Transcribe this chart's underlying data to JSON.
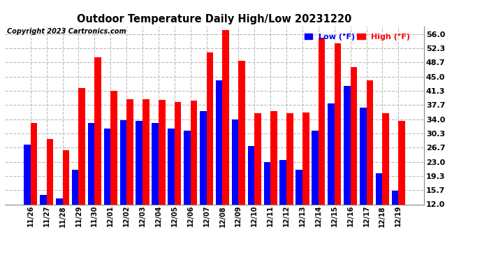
{
  "title": "Outdoor Temperature Daily High/Low 20231220",
  "copyright": "Copyright 2023 Cartronics.com",
  "legend_low": "Low (°F)",
  "legend_high": "High (°F)",
  "low_color": "#0000ff",
  "high_color": "#ff0000",
  "background_color": "#ffffff",
  "ylim": [
    12.0,
    58.0
  ],
  "yticks": [
    12.0,
    15.7,
    19.3,
    23.0,
    26.7,
    30.3,
    34.0,
    37.7,
    41.3,
    45.0,
    48.7,
    52.3,
    56.0
  ],
  "dates": [
    "11/26",
    "11/27",
    "11/28",
    "11/29",
    "11/30",
    "12/01",
    "12/02",
    "12/03",
    "12/04",
    "12/05",
    "12/06",
    "12/07",
    "12/08",
    "12/09",
    "12/10",
    "12/11",
    "12/12",
    "12/13",
    "12/14",
    "12/15",
    "12/16",
    "12/17",
    "12/18",
    "12/19"
  ],
  "highs": [
    33.0,
    28.8,
    26.0,
    42.0,
    50.0,
    41.3,
    39.2,
    39.2,
    39.0,
    38.5,
    38.8,
    51.2,
    57.0,
    49.0,
    35.5,
    36.0,
    35.5,
    35.8,
    55.0,
    53.5,
    47.5,
    44.0,
    35.5,
    33.5
  ],
  "lows": [
    27.5,
    14.5,
    13.5,
    21.0,
    33.0,
    31.5,
    33.8,
    33.5,
    33.0,
    31.5,
    31.0,
    36.0,
    44.0,
    34.0,
    27.0,
    23.0,
    23.5,
    21.0,
    31.0,
    38.0,
    42.5,
    37.0,
    20.0,
    15.5
  ],
  "grid_color": "#bbbbbb",
  "bar_width": 0.42
}
